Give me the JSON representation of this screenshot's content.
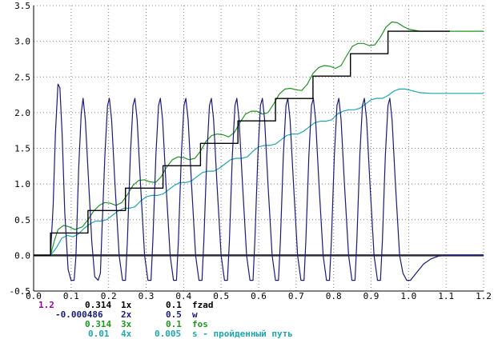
{
  "colors": {
    "fzad": "#000000",
    "w": "#1a1a7e",
    "fos": "#1e961e",
    "s": "#1aa7b0",
    "magenta": "#990099",
    "grid": "#808080"
  },
  "legend": {
    "r1": {
      "val": "1.2",
      "scale": "0.314",
      "mult": "1x",
      "name_val": "0.1",
      "name": "fzad"
    },
    "r2": {
      "scale": "-0.000486",
      "mult": "2x",
      "name_val": "0.5",
      "name": "w"
    },
    "r3": {
      "scale": "0.314",
      "mult": "3x",
      "name_val": "0.1",
      "name": "fos"
    },
    "r4": {
      "scale": "0.01",
      "mult": "4x",
      "name_val": "0.005",
      "name": "s - пройденный путь"
    }
  },
  "chart_data": {
    "type": "line",
    "xlim": [
      0.0,
      1.2
    ],
    "ylim": [
      -0.5,
      3.5
    ],
    "x_ticks": [
      "0.0",
      "0.1",
      "0.2",
      "0.3",
      "0.4",
      "0.5",
      "0.6",
      "0.7",
      "0.8",
      "0.9",
      "1.0",
      "1.1",
      "1.2"
    ],
    "y_ticks": [
      "3.5",
      "3.0",
      "2.5",
      "2.0",
      "1.5",
      "1.0",
      "0.5",
      "0.0",
      "-0.5"
    ],
    "grid": true,
    "series": [
      {
        "name": "fzad",
        "color": "#000000",
        "step": true,
        "points": [
          [
            0.0,
            0.0
          ],
          [
            0.045,
            0.0
          ],
          [
            0.045,
            0.314
          ],
          [
            0.145,
            0.314
          ],
          [
            0.145,
            0.628
          ],
          [
            0.245,
            0.628
          ],
          [
            0.245,
            0.942
          ],
          [
            0.345,
            0.942
          ],
          [
            0.345,
            1.256
          ],
          [
            0.445,
            1.256
          ],
          [
            0.445,
            1.57
          ],
          [
            0.545,
            1.57
          ],
          [
            0.545,
            1.884
          ],
          [
            0.645,
            1.884
          ],
          [
            0.645,
            2.198
          ],
          [
            0.745,
            2.198
          ],
          [
            0.745,
            2.512
          ],
          [
            0.845,
            2.512
          ],
          [
            0.845,
            2.826
          ],
          [
            0.945,
            2.826
          ],
          [
            0.945,
            3.14
          ],
          [
            1.11,
            3.14
          ]
        ]
      },
      {
        "name": "w",
        "color": "#1a1a7e",
        "points": [
          [
            0.0,
            0.0
          ],
          [
            0.045,
            0.0
          ],
          [
            0.052,
            0.7
          ],
          [
            0.058,
            1.7
          ],
          [
            0.065,
            2.4
          ],
          [
            0.07,
            2.35
          ],
          [
            0.076,
            1.7
          ],
          [
            0.083,
            0.6
          ],
          [
            0.092,
            -0.2
          ],
          [
            0.1,
            -0.35
          ],
          [
            0.108,
            -0.35
          ],
          [
            0.113,
            0.0
          ],
          [
            0.12,
            1.2
          ],
          [
            0.127,
            2.0
          ],
          [
            0.132,
            2.2
          ],
          [
            0.138,
            1.9
          ],
          [
            0.145,
            1.2
          ],
          [
            0.155,
            0.2
          ],
          [
            0.163,
            -0.3
          ],
          [
            0.172,
            -0.35
          ],
          [
            0.178,
            -0.25
          ],
          [
            0.182,
            0.3
          ],
          [
            0.19,
            1.4
          ],
          [
            0.197,
            2.1
          ],
          [
            0.202,
            2.2
          ],
          [
            0.208,
            1.9
          ],
          [
            0.217,
            1.0
          ],
          [
            0.228,
            0.0
          ],
          [
            0.237,
            -0.35
          ],
          [
            0.245,
            -0.35
          ],
          [
            0.25,
            0.2
          ],
          [
            0.258,
            1.4
          ],
          [
            0.265,
            2.1
          ],
          [
            0.27,
            2.2
          ],
          [
            0.276,
            1.9
          ],
          [
            0.285,
            1.0
          ],
          [
            0.296,
            0.0
          ],
          [
            0.305,
            -0.35
          ],
          [
            0.313,
            -0.35
          ],
          [
            0.318,
            0.2
          ],
          [
            0.326,
            1.4
          ],
          [
            0.333,
            2.1
          ],
          [
            0.338,
            2.2
          ],
          [
            0.344,
            1.9
          ],
          [
            0.353,
            1.0
          ],
          [
            0.364,
            0.0
          ],
          [
            0.373,
            -0.35
          ],
          [
            0.381,
            -0.35
          ],
          [
            0.386,
            0.2
          ],
          [
            0.394,
            1.4
          ],
          [
            0.401,
            2.1
          ],
          [
            0.406,
            2.2
          ],
          [
            0.412,
            1.9
          ],
          [
            0.421,
            1.0
          ],
          [
            0.432,
            0.0
          ],
          [
            0.441,
            -0.35
          ],
          [
            0.449,
            -0.35
          ],
          [
            0.454,
            0.2
          ],
          [
            0.462,
            1.4
          ],
          [
            0.469,
            2.1
          ],
          [
            0.474,
            2.2
          ],
          [
            0.48,
            1.9
          ],
          [
            0.489,
            1.0
          ],
          [
            0.5,
            0.0
          ],
          [
            0.509,
            -0.35
          ],
          [
            0.517,
            -0.35
          ],
          [
            0.522,
            0.2
          ],
          [
            0.53,
            1.4
          ],
          [
            0.537,
            2.1
          ],
          [
            0.542,
            2.2
          ],
          [
            0.548,
            1.9
          ],
          [
            0.557,
            1.0
          ],
          [
            0.568,
            0.0
          ],
          [
            0.577,
            -0.35
          ],
          [
            0.585,
            -0.35
          ],
          [
            0.59,
            0.2
          ],
          [
            0.598,
            1.4
          ],
          [
            0.605,
            2.1
          ],
          [
            0.61,
            2.2
          ],
          [
            0.616,
            1.9
          ],
          [
            0.625,
            1.0
          ],
          [
            0.636,
            0.0
          ],
          [
            0.645,
            -0.35
          ],
          [
            0.653,
            -0.35
          ],
          [
            0.658,
            0.2
          ],
          [
            0.666,
            1.4
          ],
          [
            0.673,
            2.1
          ],
          [
            0.678,
            2.2
          ],
          [
            0.684,
            1.9
          ],
          [
            0.693,
            1.0
          ],
          [
            0.704,
            0.0
          ],
          [
            0.713,
            -0.35
          ],
          [
            0.721,
            -0.35
          ],
          [
            0.726,
            0.2
          ],
          [
            0.734,
            1.4
          ],
          [
            0.741,
            2.1
          ],
          [
            0.746,
            2.2
          ],
          [
            0.752,
            1.9
          ],
          [
            0.761,
            1.0
          ],
          [
            0.772,
            0.0
          ],
          [
            0.781,
            -0.35
          ],
          [
            0.789,
            -0.35
          ],
          [
            0.794,
            0.2
          ],
          [
            0.802,
            1.4
          ],
          [
            0.809,
            2.1
          ],
          [
            0.814,
            2.2
          ],
          [
            0.82,
            1.9
          ],
          [
            0.829,
            1.0
          ],
          [
            0.84,
            0.0
          ],
          [
            0.849,
            -0.35
          ],
          [
            0.857,
            -0.35
          ],
          [
            0.862,
            0.2
          ],
          [
            0.87,
            1.4
          ],
          [
            0.877,
            2.1
          ],
          [
            0.882,
            2.2
          ],
          [
            0.888,
            1.9
          ],
          [
            0.897,
            1.0
          ],
          [
            0.908,
            0.0
          ],
          [
            0.917,
            -0.35
          ],
          [
            0.925,
            -0.35
          ],
          [
            0.93,
            0.2
          ],
          [
            0.938,
            1.4
          ],
          [
            0.945,
            2.1
          ],
          [
            0.95,
            2.2
          ],
          [
            0.956,
            1.9
          ],
          [
            0.965,
            1.0
          ],
          [
            0.976,
            0.0
          ],
          [
            0.985,
            -0.25
          ],
          [
            0.995,
            -0.35
          ],
          [
            1.005,
            -0.35
          ],
          [
            1.02,
            -0.25
          ],
          [
            1.04,
            -0.12
          ],
          [
            1.06,
            -0.05
          ],
          [
            1.08,
            -0.01
          ],
          [
            1.1,
            0.0
          ],
          [
            1.2,
            0.0
          ]
        ]
      },
      {
        "name": "fos",
        "color": "#1e961e",
        "points": [
          [
            0.0,
            0.0
          ],
          [
            0.045,
            0.0
          ],
          [
            0.055,
            0.2
          ],
          [
            0.065,
            0.36
          ],
          [
            0.08,
            0.42
          ],
          [
            0.095,
            0.4
          ],
          [
            0.11,
            0.36
          ],
          [
            0.13,
            0.4
          ],
          [
            0.145,
            0.5
          ],
          [
            0.16,
            0.62
          ],
          [
            0.175,
            0.7
          ],
          [
            0.19,
            0.74
          ],
          [
            0.205,
            0.73
          ],
          [
            0.22,
            0.7
          ],
          [
            0.235,
            0.74
          ],
          [
            0.25,
            0.85
          ],
          [
            0.265,
            0.98
          ],
          [
            0.28,
            1.05
          ],
          [
            0.295,
            1.06
          ],
          [
            0.31,
            1.03
          ],
          [
            0.325,
            1.02
          ],
          [
            0.34,
            1.1
          ],
          [
            0.355,
            1.24
          ],
          [
            0.37,
            1.34
          ],
          [
            0.385,
            1.38
          ],
          [
            0.4,
            1.37
          ],
          [
            0.415,
            1.34
          ],
          [
            0.43,
            1.36
          ],
          [
            0.445,
            1.46
          ],
          [
            0.46,
            1.6
          ],
          [
            0.475,
            1.68
          ],
          [
            0.49,
            1.7
          ],
          [
            0.505,
            1.69
          ],
          [
            0.52,
            1.66
          ],
          [
            0.535,
            1.72
          ],
          [
            0.55,
            1.86
          ],
          [
            0.565,
            1.98
          ],
          [
            0.58,
            2.02
          ],
          [
            0.595,
            2.02
          ],
          [
            0.61,
            1.98
          ],
          [
            0.625,
            2.0
          ],
          [
            0.64,
            2.12
          ],
          [
            0.655,
            2.26
          ],
          [
            0.67,
            2.33
          ],
          [
            0.685,
            2.34
          ],
          [
            0.7,
            2.32
          ],
          [
            0.715,
            2.31
          ],
          [
            0.73,
            2.4
          ],
          [
            0.745,
            2.55
          ],
          [
            0.76,
            2.63
          ],
          [
            0.775,
            2.66
          ],
          [
            0.79,
            2.65
          ],
          [
            0.805,
            2.62
          ],
          [
            0.82,
            2.66
          ],
          [
            0.835,
            2.8
          ],
          [
            0.85,
            2.93
          ],
          [
            0.865,
            2.97
          ],
          [
            0.88,
            2.97
          ],
          [
            0.895,
            2.94
          ],
          [
            0.91,
            2.95
          ],
          [
            0.925,
            3.06
          ],
          [
            0.94,
            3.2
          ],
          [
            0.955,
            3.27
          ],
          [
            0.97,
            3.26
          ],
          [
            0.985,
            3.21
          ],
          [
            1.0,
            3.17
          ],
          [
            1.03,
            3.14
          ],
          [
            1.1,
            3.14
          ],
          [
            1.2,
            3.14
          ]
        ]
      },
      {
        "name": "s",
        "color": "#1aa7b0",
        "points": [
          [
            0.0,
            0.0
          ],
          [
            0.045,
            0.0
          ],
          [
            0.06,
            0.1
          ],
          [
            0.075,
            0.24
          ],
          [
            0.09,
            0.28
          ],
          [
            0.105,
            0.26
          ],
          [
            0.12,
            0.3
          ],
          [
            0.135,
            0.38
          ],
          [
            0.15,
            0.44
          ],
          [
            0.165,
            0.48
          ],
          [
            0.18,
            0.48
          ],
          [
            0.195,
            0.5
          ],
          [
            0.21,
            0.56
          ],
          [
            0.225,
            0.62
          ],
          [
            0.24,
            0.66
          ],
          [
            0.255,
            0.66
          ],
          [
            0.27,
            0.68
          ],
          [
            0.285,
            0.76
          ],
          [
            0.3,
            0.82
          ],
          [
            0.315,
            0.84
          ],
          [
            0.33,
            0.84
          ],
          [
            0.345,
            0.86
          ],
          [
            0.36,
            0.92
          ],
          [
            0.375,
            0.98
          ],
          [
            0.39,
            1.02
          ],
          [
            0.405,
            1.02
          ],
          [
            0.42,
            1.04
          ],
          [
            0.435,
            1.1
          ],
          [
            0.45,
            1.16
          ],
          [
            0.465,
            1.18
          ],
          [
            0.48,
            1.18
          ],
          [
            0.495,
            1.22
          ],
          [
            0.51,
            1.28
          ],
          [
            0.525,
            1.34
          ],
          [
            0.54,
            1.36
          ],
          [
            0.555,
            1.36
          ],
          [
            0.57,
            1.38
          ],
          [
            0.585,
            1.46
          ],
          [
            0.6,
            1.52
          ],
          [
            0.615,
            1.54
          ],
          [
            0.63,
            1.54
          ],
          [
            0.645,
            1.56
          ],
          [
            0.66,
            1.62
          ],
          [
            0.675,
            1.68
          ],
          [
            0.69,
            1.7
          ],
          [
            0.705,
            1.7
          ],
          [
            0.72,
            1.74
          ],
          [
            0.735,
            1.8
          ],
          [
            0.75,
            1.86
          ],
          [
            0.765,
            1.88
          ],
          [
            0.78,
            1.88
          ],
          [
            0.795,
            1.9
          ],
          [
            0.81,
            1.98
          ],
          [
            0.825,
            2.02
          ],
          [
            0.84,
            2.04
          ],
          [
            0.855,
            2.04
          ],
          [
            0.87,
            2.06
          ],
          [
            0.885,
            2.12
          ],
          [
            0.9,
            2.18
          ],
          [
            0.915,
            2.2
          ],
          [
            0.93,
            2.2
          ],
          [
            0.945,
            2.24
          ],
          [
            0.96,
            2.3
          ],
          [
            0.975,
            2.33
          ],
          [
            0.99,
            2.33
          ],
          [
            1.0,
            2.32
          ],
          [
            1.03,
            2.28
          ],
          [
            1.06,
            2.27
          ],
          [
            1.1,
            2.27
          ],
          [
            1.2,
            2.27
          ]
        ]
      }
    ]
  }
}
